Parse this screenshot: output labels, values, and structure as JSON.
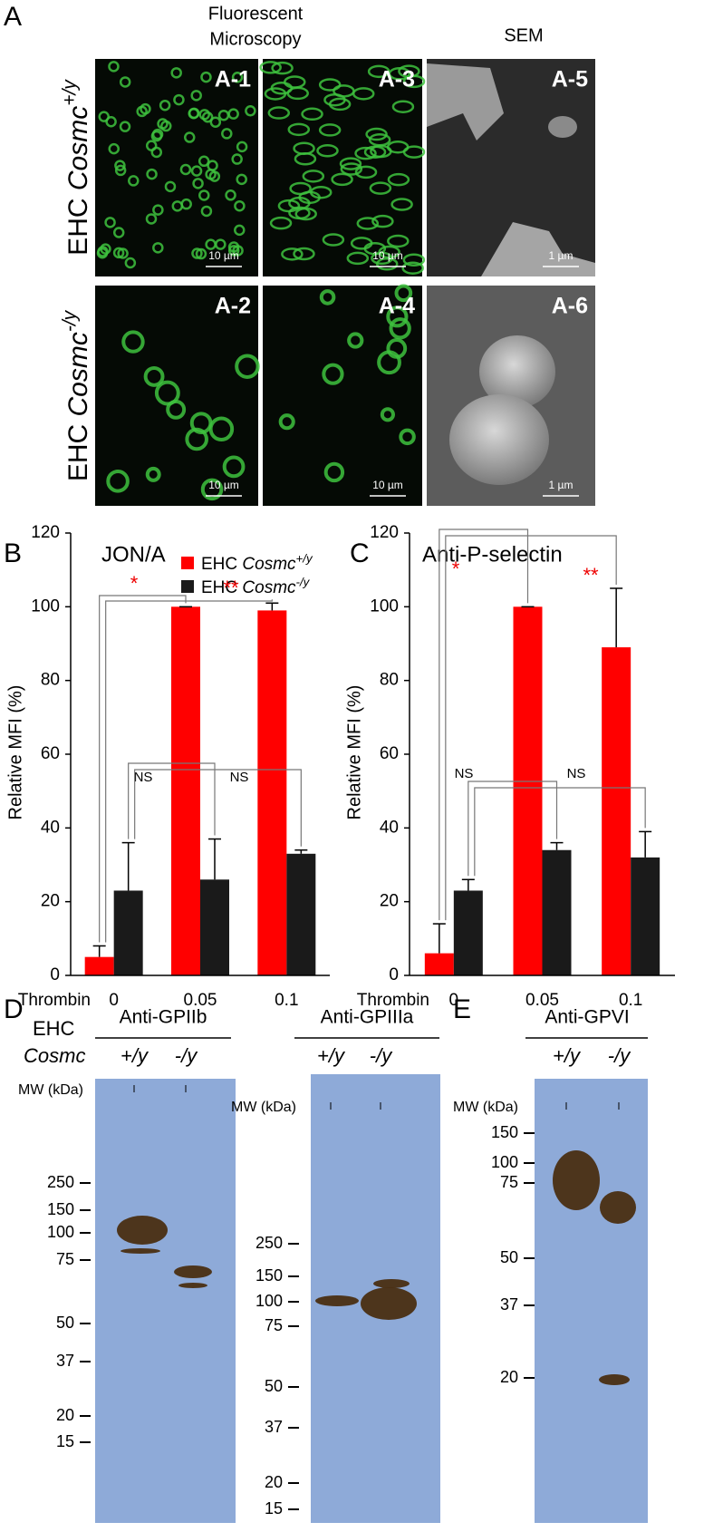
{
  "panel_a": {
    "label": "A",
    "column_header": [
      "Fluorescent",
      "Microscopy"
    ],
    "sem_header": "SEM",
    "row_labels": [
      "EHC Cosmc+/y",
      "EHC Cosmc-/y"
    ],
    "tiles": [
      {
        "label": "A-1",
        "scale_bar": "10 µm"
      },
      {
        "label": "A-3",
        "scale_bar": "10 µm"
      },
      {
        "label": "A-5",
        "scale_bar": "1 µm"
      },
      {
        "label": "A-2",
        "scale_bar": "10 µm"
      },
      {
        "label": "A-4",
        "scale_bar": "10 µm"
      },
      {
        "label": "A-6",
        "scale_bar": "1 µm"
      }
    ]
  },
  "chart_data": [
    {
      "panel_label": "B",
      "type": "bar",
      "title": "JON/A",
      "y_label": "Relative MFI (%)",
      "x_label": "Thrombin",
      "categories": [
        "0",
        "0.05",
        "0.1"
      ],
      "ylim": [
        0,
        120
      ],
      "yticks": [
        0,
        20,
        40,
        60,
        80,
        100,
        120
      ],
      "series": [
        {
          "name": "EHC Cosmc+/y",
          "color": "#ff0000",
          "values": [
            5,
            100,
            99
          ],
          "errors": [
            3,
            0,
            2
          ]
        },
        {
          "name": "EHC Cosmc-/y",
          "color": "#1a1a1a",
          "values": [
            23,
            26,
            33
          ],
          "errors": [
            13,
            11,
            1
          ]
        }
      ],
      "annotations": [
        "*",
        "**",
        "NS",
        "NS"
      ]
    },
    {
      "panel_label": "C",
      "type": "bar",
      "title": "Anti-P-selectin",
      "y_label": "Relative MFI (%)",
      "x_label": "Thrombin",
      "categories": [
        "0",
        "0.05",
        "0.1"
      ],
      "ylim": [
        0,
        120
      ],
      "yticks": [
        0,
        20,
        40,
        60,
        80,
        100,
        120
      ],
      "series": [
        {
          "color": "#ff0000",
          "values": [
            6,
            100,
            89
          ],
          "errors": [
            8,
            0,
            16
          ]
        },
        {
          "color": "#1a1a1a",
          "values": [
            23,
            34,
            32
          ],
          "errors": [
            3,
            2,
            7
          ]
        }
      ],
      "annotations": [
        "*",
        "**",
        "NS",
        "NS"
      ]
    }
  ],
  "panel_d": {
    "label": "D",
    "row_labels": [
      "EHC",
      "Cosmc"
    ],
    "blots": [
      {
        "title": "Anti-GPIIb",
        "lanes": [
          "+/y",
          "-/y"
        ],
        "mw_label": "MW (kDa)",
        "markers": [
          250,
          150,
          100,
          75,
          50,
          37,
          20,
          15
        ]
      },
      {
        "title": "Anti-GPIIIa",
        "lanes": [
          "+/y",
          "-/y"
        ],
        "mw_label": "MW (kDa)",
        "markers": [
          250,
          150,
          100,
          75,
          50,
          37,
          20,
          15
        ]
      }
    ]
  },
  "panel_e": {
    "label": "E",
    "blots": [
      {
        "title": "Anti-GPVI",
        "lanes": [
          "+/y",
          "-/y"
        ],
        "mw_label": "MW (kDa)",
        "markers": [
          150,
          100,
          75,
          50,
          37,
          20
        ]
      }
    ]
  }
}
